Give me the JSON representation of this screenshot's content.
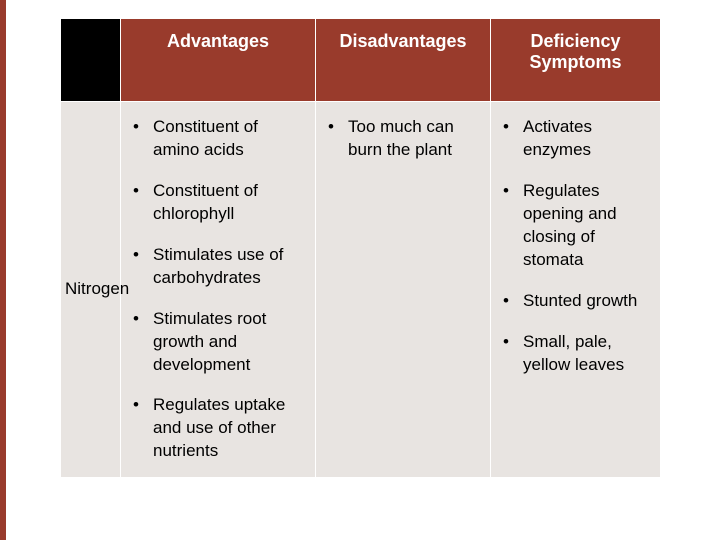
{
  "accent_color": "#993b2c",
  "header_bg": "#993b2c",
  "header_blank_bg": "#000000",
  "cell_bg": "#e8e4e1",
  "headers": {
    "col1": "Advantages",
    "col2": "Disadvantages",
    "col3": "Deficiency Symptoms"
  },
  "row": {
    "label": "Nitrogen",
    "advantages": [
      "Constituent of amino acids",
      "Constituent of chlorophyll",
      "Stimulates use of carbohydrates",
      "Stimulates root growth and development",
      "Regulates uptake and use of other nutrients"
    ],
    "disadvantages": [
      "Too much can burn the plant"
    ],
    "deficiency": [
      "Activates enzymes",
      "Regulates opening and closing of stomata",
      "Stunted growth",
      "Small, pale, yellow leaves"
    ]
  }
}
